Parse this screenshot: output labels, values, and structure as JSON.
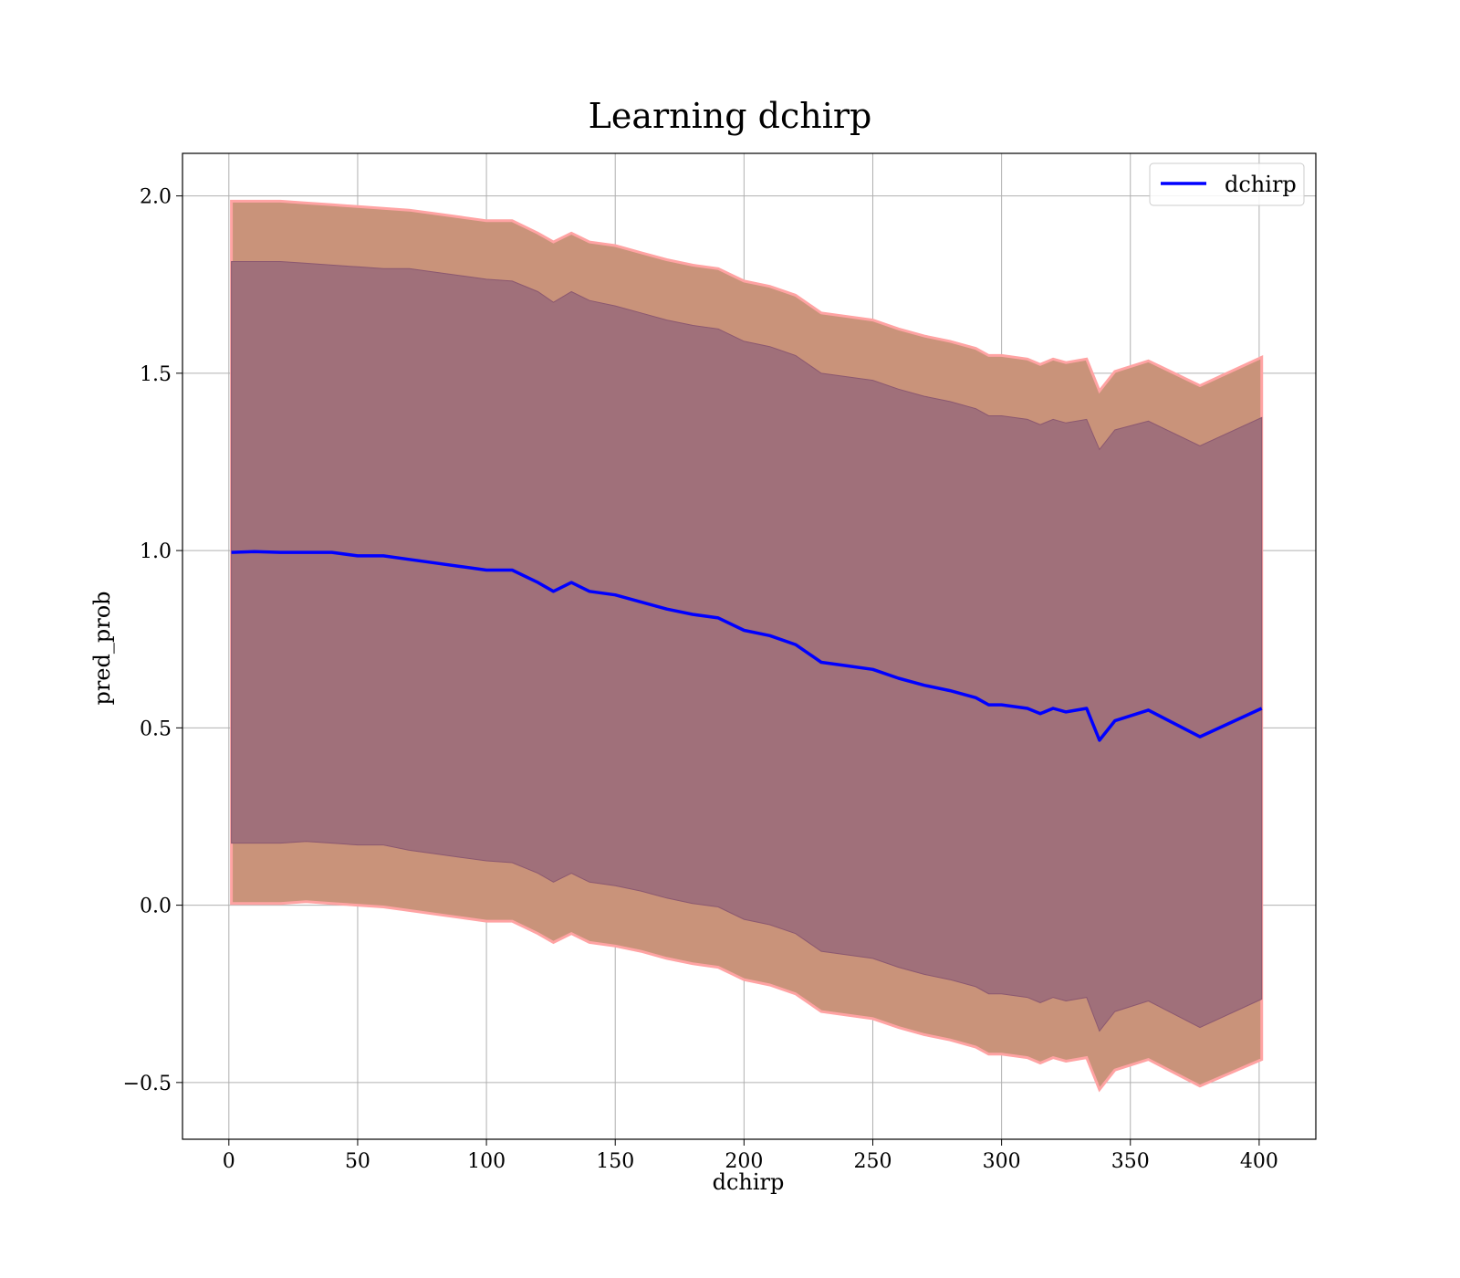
{
  "chart_data": {
    "type": "line",
    "title": "Learning dchirp",
    "xlabel": "dchirp",
    "ylabel": "pred_prob",
    "xlim": [
      -18,
      422
    ],
    "ylim": [
      -0.66,
      2.12
    ],
    "xticks": [
      0,
      50,
      100,
      150,
      200,
      250,
      300,
      350,
      400
    ],
    "yticks": [
      -0.5,
      0.0,
      0.5,
      1.0,
      1.5,
      2.0
    ],
    "xtick_labels": [
      "0",
      "50",
      "100",
      "150",
      "200",
      "250",
      "300",
      "350",
      "400"
    ],
    "ytick_labels": [
      "−0.5",
      "0.0",
      "0.5",
      "1.0",
      "1.5",
      "2.0"
    ],
    "grid": true,
    "legend": {
      "position": "top-right",
      "entries": [
        "dchirp"
      ]
    },
    "colors": {
      "line": "#0000ff",
      "outer_band": "#c9937a",
      "outer_edge": "#ffa3a3",
      "inner_band": "#a0707a",
      "inner_edge": "#8b5870"
    },
    "series": [
      {
        "name": "dchirp",
        "x": [
          1,
          10,
          20,
          30,
          40,
          50,
          60,
          70,
          80,
          90,
          100,
          110,
          120,
          126,
          133,
          140,
          150,
          160,
          170,
          180,
          190,
          200,
          210,
          220,
          230,
          240,
          250,
          260,
          270,
          280,
          290,
          295,
          300,
          310,
          315,
          320,
          325,
          333,
          338,
          344,
          357,
          377,
          401
        ],
        "y": [
          0.995,
          0.997,
          0.995,
          0.995,
          0.995,
          0.985,
          0.985,
          0.975,
          0.965,
          0.955,
          0.945,
          0.945,
          0.91,
          0.885,
          0.91,
          0.885,
          0.875,
          0.855,
          0.835,
          0.82,
          0.81,
          0.775,
          0.76,
          0.735,
          0.685,
          0.675,
          0.665,
          0.64,
          0.62,
          0.605,
          0.585,
          0.565,
          0.565,
          0.555,
          0.54,
          0.555,
          0.545,
          0.555,
          0.465,
          0.52,
          0.55,
          0.475,
          0.555
        ],
        "inner_upper": [
          1.815,
          1.815,
          1.815,
          1.81,
          1.805,
          1.8,
          1.795,
          1.795,
          1.785,
          1.775,
          1.765,
          1.76,
          1.73,
          1.7,
          1.73,
          1.705,
          1.69,
          1.67,
          1.65,
          1.635,
          1.625,
          1.59,
          1.575,
          1.55,
          1.5,
          1.49,
          1.48,
          1.455,
          1.435,
          1.42,
          1.4,
          1.38,
          1.38,
          1.37,
          1.355,
          1.37,
          1.36,
          1.37,
          1.285,
          1.34,
          1.365,
          1.295,
          1.375
        ],
        "inner_lower": [
          0.175,
          0.175,
          0.175,
          0.18,
          0.175,
          0.17,
          0.17,
          0.155,
          0.145,
          0.135,
          0.125,
          0.12,
          0.09,
          0.065,
          0.09,
          0.065,
          0.055,
          0.04,
          0.02,
          0.005,
          -0.005,
          -0.04,
          -0.055,
          -0.08,
          -0.13,
          -0.14,
          -0.15,
          -0.175,
          -0.195,
          -0.21,
          -0.23,
          -0.25,
          -0.25,
          -0.26,
          -0.275,
          -0.26,
          -0.27,
          -0.26,
          -0.355,
          -0.3,
          -0.27,
          -0.345,
          -0.265
        ],
        "outer_upper": [
          1.985,
          1.985,
          1.985,
          1.98,
          1.975,
          1.97,
          1.965,
          1.96,
          1.95,
          1.94,
          1.93,
          1.93,
          1.895,
          1.87,
          1.895,
          1.87,
          1.86,
          1.84,
          1.82,
          1.805,
          1.795,
          1.76,
          1.745,
          1.72,
          1.67,
          1.66,
          1.65,
          1.625,
          1.605,
          1.59,
          1.57,
          1.55,
          1.55,
          1.54,
          1.525,
          1.54,
          1.53,
          1.54,
          1.45,
          1.505,
          1.535,
          1.465,
          1.545
        ],
        "outer_lower": [
          0.005,
          0.005,
          0.005,
          0.01,
          0.005,
          0.0,
          -0.005,
          -0.015,
          -0.025,
          -0.035,
          -0.045,
          -0.045,
          -0.08,
          -0.105,
          -0.08,
          -0.105,
          -0.115,
          -0.13,
          -0.15,
          -0.165,
          -0.175,
          -0.21,
          -0.225,
          -0.25,
          -0.3,
          -0.31,
          -0.32,
          -0.345,
          -0.365,
          -0.38,
          -0.4,
          -0.42,
          -0.42,
          -0.43,
          -0.445,
          -0.43,
          -0.44,
          -0.43,
          -0.52,
          -0.465,
          -0.435,
          -0.51,
          -0.435
        ]
      }
    ]
  }
}
